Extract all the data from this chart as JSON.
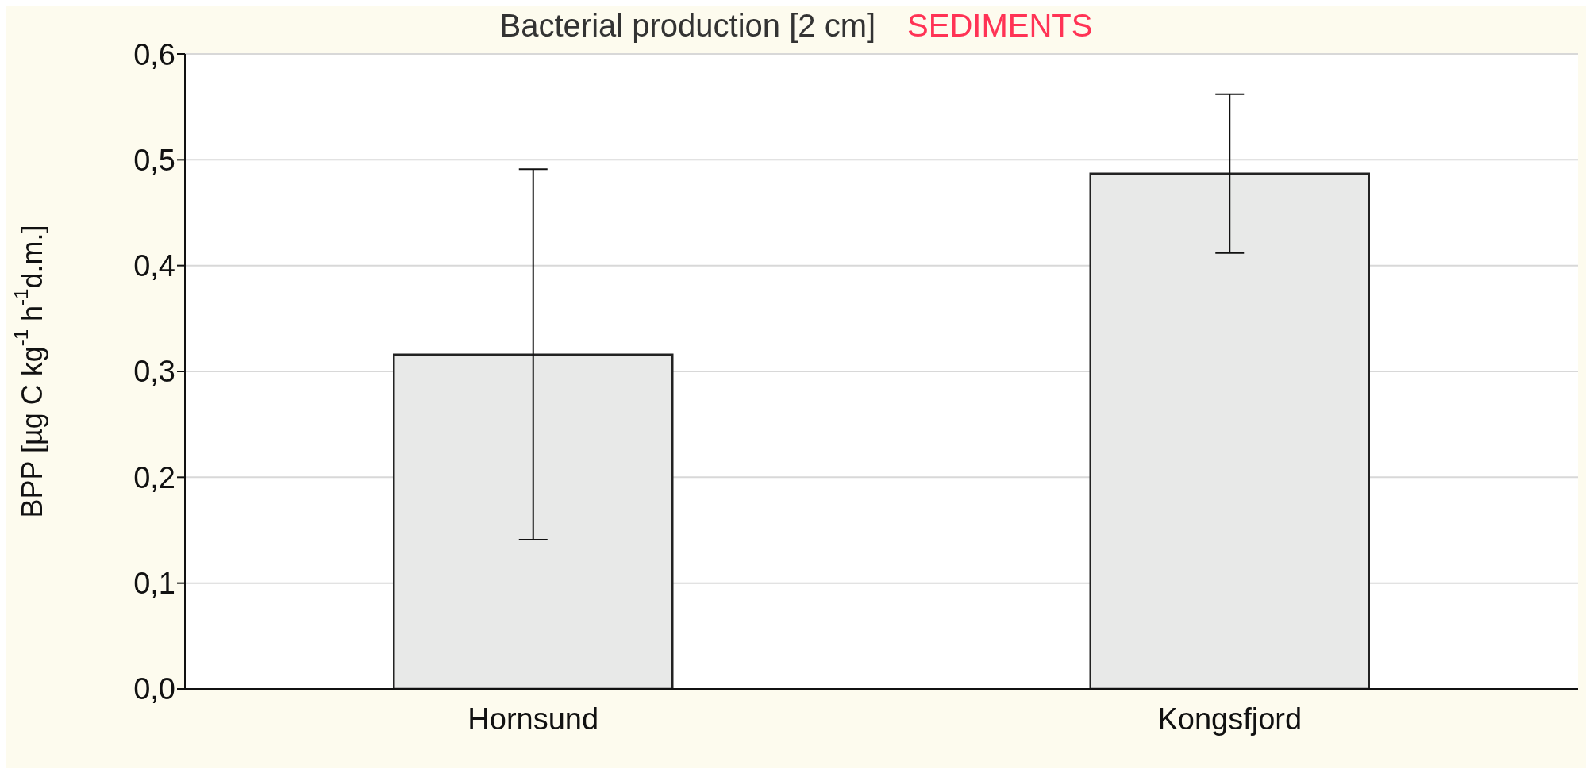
{
  "chart_data": {
    "type": "bar",
    "title": "Bacterial production [2 cm]",
    "annotations": [
      "SEDIMENTS"
    ],
    "ylabel": "BPP [µg C kg$^{-1}$ h$^{-1}$d.m.]",
    "categories": [
      "Hornsund",
      "Kongsfjord"
    ],
    "values": [
      0.316,
      0.487
    ],
    "errors": [
      0.175,
      0.075
    ],
    "color": "#e8e9e8",
    "ylim": [
      0,
      0.6
    ],
    "yticks": [
      {
        "value": 0,
        "label": "0,0"
      },
      {
        "value": 0.1,
        "label": "0,1"
      },
      {
        "value": 0.2,
        "label": "0,2"
      },
      {
        "value": 0.3,
        "label": "0,3"
      },
      {
        "value": 0.4,
        "label": "0,4"
      },
      {
        "value": 0.5,
        "label": "0,5"
      },
      {
        "value": 0.6,
        "label": "0,6"
      }
    ],
    "grid": "y"
  }
}
